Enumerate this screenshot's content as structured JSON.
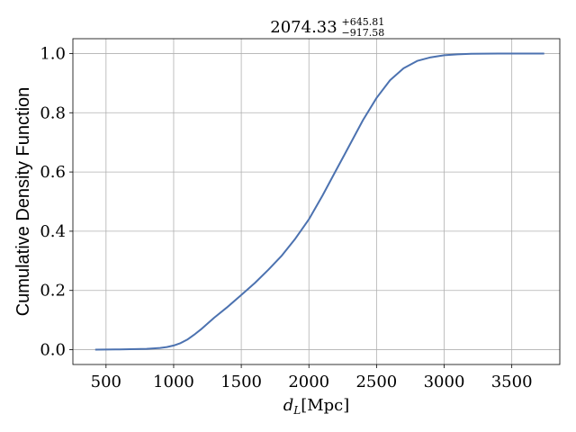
{
  "chart_data": {
    "type": "line",
    "title": {
      "value": "2074.33",
      "upper": "+645.81",
      "lower": "−917.58"
    },
    "xlabel": {
      "symbol": "d",
      "subscript": "L",
      "unit": "[Mpc]"
    },
    "ylabel": "Cumulative Density Function",
    "xlim": [
      255,
      3855
    ],
    "ylim": [
      -0.05,
      1.05
    ],
    "x_ticks": [
      500,
      1000,
      1500,
      2000,
      2500,
      3000,
      3500
    ],
    "y_ticks": [
      0.0,
      0.2,
      0.4,
      0.6,
      0.8,
      1.0
    ],
    "x_tick_labels": [
      "500",
      "1000",
      "1500",
      "2000",
      "2500",
      "3000",
      "3500"
    ],
    "y_tick_labels": [
      "0.0",
      "0.2",
      "0.4",
      "0.6",
      "0.8",
      "1.0"
    ],
    "grid": true,
    "line_color": "#4c72b0",
    "grid_color": "#b0b0b0",
    "series": [
      {
        "x": [
          420,
          600,
          800,
          900,
          950,
          1000,
          1050,
          1100,
          1150,
          1200,
          1300,
          1400,
          1500,
          1600,
          1700,
          1800,
          1900,
          2000,
          2100,
          2200,
          2300,
          2400,
          2500,
          2600,
          2700,
          2800,
          2900,
          3000,
          3100,
          3200,
          3300,
          3400,
          3500,
          3600,
          3740
        ],
        "y": [
          0.0,
          0.001,
          0.003,
          0.006,
          0.009,
          0.014,
          0.022,
          0.034,
          0.05,
          0.068,
          0.108,
          0.145,
          0.185,
          0.225,
          0.27,
          0.318,
          0.375,
          0.44,
          0.52,
          0.605,
          0.69,
          0.775,
          0.85,
          0.91,
          0.95,
          0.975,
          0.987,
          0.994,
          0.997,
          0.999,
          0.9995,
          1.0,
          1.0,
          1.0,
          1.0
        ]
      }
    ]
  }
}
